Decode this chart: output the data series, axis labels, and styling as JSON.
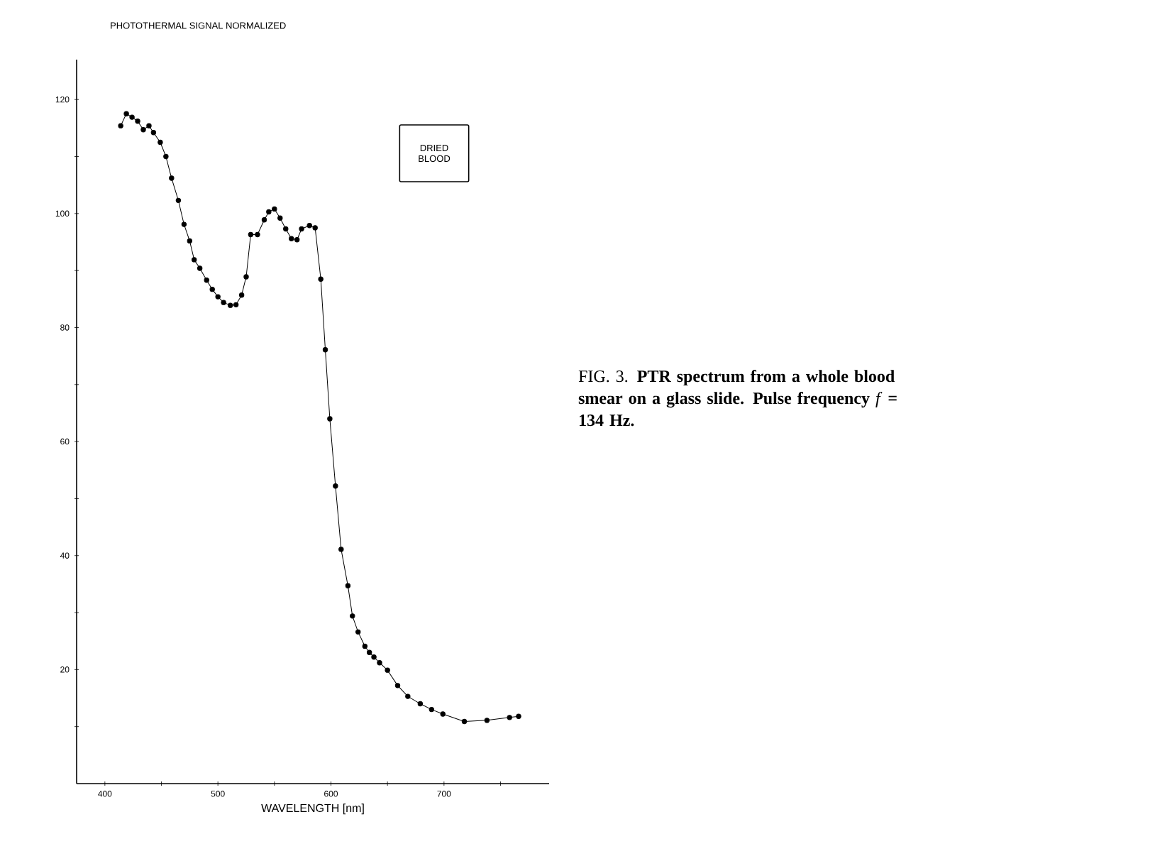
{
  "chart_data": {
    "type": "line",
    "xlabel": "WAVELENGTH [nm]",
    "ylabel": "PHOTOTHERMAL SIGNAL NORMALIZED",
    "annotations": [
      "DRIED BLOOD",
      "FIG. 3. **PTR spectrum from a whole blood smear on a glass slide. Pulse frequency** *f* **= 134 Hz.**"
    ],
    "xlim": [
      375,
      793
    ],
    "ylim": [
      0,
      127
    ],
    "xticks": [
      400,
      {
        "value": 450,
        "label": null
      },
      500,
      {
        "value": 550,
        "label": null
      },
      600,
      {
        "value": 650,
        "label": null
      },
      700,
      {
        "value": 750,
        "label": null
      }
    ],
    "yticks": [
      {
        "value": 10,
        "label": null
      },
      20,
      {
        "value": 30,
        "label": null
      },
      40,
      {
        "value": 50,
        "label": null
      },
      60,
      {
        "value": 70,
        "label": null
      },
      80,
      {
        "value": 90,
        "label": null
      },
      100,
      {
        "value": 110,
        "label": null
      },
      120
    ],
    "marker": "circle",
    "line_style": "solid",
    "grid": false,
    "series": [
      {
        "color": "#000000",
        "x": [
          414,
          419,
          424,
          429,
          434,
          439,
          443,
          449,
          454,
          459,
          465,
          470,
          475,
          479,
          484,
          490,
          495,
          500,
          505,
          511,
          516,
          521,
          525,
          529,
          535,
          541,
          545,
          550,
          555,
          560,
          565,
          570,
          574,
          581,
          586,
          591,
          595,
          599,
          604,
          609,
          615,
          619,
          624,
          630,
          634,
          638,
          643,
          650,
          659,
          668,
          679,
          689,
          699,
          718,
          738,
          758,
          766
        ],
        "values": [
          115.4,
          117.5,
          116.9,
          116.2,
          114.7,
          115.4,
          114.2,
          112.5,
          110,
          106.2,
          102.3,
          98.1,
          95.2,
          91.9,
          90.4,
          88.3,
          86.7,
          85.4,
          84.4,
          83.9,
          84,
          85.7,
          88.9,
          96.3,
          96.3,
          98.9,
          100.3,
          100.8,
          99.2,
          97.3,
          95.6,
          95.4,
          97.3,
          97.9,
          97.5,
          88.5,
          76.1,
          64,
          52.2,
          41.1,
          34.7,
          29.4,
          26.6,
          24.1,
          23,
          22.2,
          21.2,
          19.9,
          17.2,
          15.3,
          14,
          13,
          12.2,
          10.9,
          11.1,
          11.6,
          11.8
        ]
      }
    ]
  }
}
